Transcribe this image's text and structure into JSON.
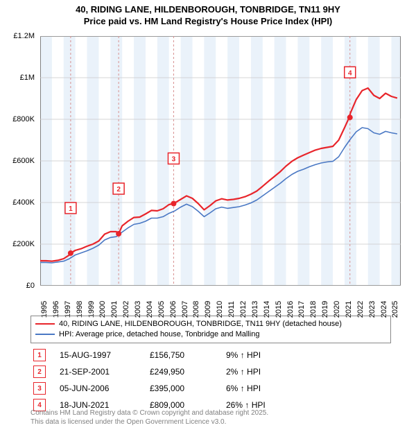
{
  "title": {
    "line1": "40, RIDING LANE, HILDENBOROUGH, TONBRIDGE, TN11 9HY",
    "line2": "Price paid vs. HM Land Registry's House Price Index (HPI)"
  },
  "chart": {
    "type": "line",
    "background_color": "#ffffff",
    "alt_band_color": "#eaf2fa",
    "grid_color": "#c8c8c8",
    "axis_color": "#808080",
    "xlim": [
      1995,
      2025.8
    ],
    "ylim": [
      0,
      1200000
    ],
    "ytick_step": 200000,
    "yticks": [
      {
        "v": 0,
        "label": "£0"
      },
      {
        "v": 200000,
        "label": "£200K"
      },
      {
        "v": 400000,
        "label": "£400K"
      },
      {
        "v": 600000,
        "label": "£600K"
      },
      {
        "v": 800000,
        "label": "£800K"
      },
      {
        "v": 1000000,
        "label": "£1M"
      },
      {
        "v": 1200000,
        "label": "£1.2M"
      }
    ],
    "xticks": [
      1995,
      1996,
      1997,
      1998,
      1999,
      2000,
      2001,
      2002,
      2003,
      2004,
      2005,
      2006,
      2007,
      2008,
      2009,
      2010,
      2011,
      2012,
      2013,
      2014,
      2015,
      2016,
      2017,
      2018,
      2019,
      2020,
      2021,
      2022,
      2023,
      2024,
      2025
    ],
    "series": [
      {
        "name": "price_paid",
        "label": "40, RIDING LANE, HILDENBOROUGH, TONBRIDGE, TN11 9HY (detached house)",
        "color": "#e8252b",
        "line_width": 2.2,
        "data": [
          [
            1995.0,
            120000
          ],
          [
            1995.5,
            120000
          ],
          [
            1996.0,
            118000
          ],
          [
            1996.5,
            122000
          ],
          [
            1997.0,
            130000
          ],
          [
            1997.5,
            148000
          ],
          [
            1997.6,
            156750
          ],
          [
            1998.0,
            170000
          ],
          [
            1998.5,
            178000
          ],
          [
            1999.0,
            190000
          ],
          [
            1999.5,
            200000
          ],
          [
            2000.0,
            215000
          ],
          [
            2000.5,
            248000
          ],
          [
            2001.0,
            260000
          ],
          [
            2001.5,
            260000
          ],
          [
            2001.7,
            249950
          ],
          [
            2002.0,
            288000
          ],
          [
            2002.5,
            310000
          ],
          [
            2003.0,
            328000
          ],
          [
            2003.5,
            330000
          ],
          [
            2004.0,
            345000
          ],
          [
            2004.5,
            362000
          ],
          [
            2005.0,
            360000
          ],
          [
            2005.5,
            370000
          ],
          [
            2006.0,
            390000
          ],
          [
            2006.4,
            395000
          ],
          [
            2007.0,
            415000
          ],
          [
            2007.5,
            432000
          ],
          [
            2008.0,
            420000
          ],
          [
            2008.5,
            395000
          ],
          [
            2009.0,
            365000
          ],
          [
            2009.5,
            385000
          ],
          [
            2010.0,
            408000
          ],
          [
            2010.5,
            418000
          ],
          [
            2011.0,
            412000
          ],
          [
            2011.5,
            415000
          ],
          [
            2012.0,
            420000
          ],
          [
            2012.5,
            428000
          ],
          [
            2013.0,
            440000
          ],
          [
            2013.5,
            455000
          ],
          [
            2014.0,
            478000
          ],
          [
            2014.5,
            502000
          ],
          [
            2015.0,
            525000
          ],
          [
            2015.5,
            548000
          ],
          [
            2016.0,
            575000
          ],
          [
            2016.5,
            598000
          ],
          [
            2017.0,
            615000
          ],
          [
            2017.5,
            628000
          ],
          [
            2018.0,
            640000
          ],
          [
            2018.5,
            652000
          ],
          [
            2019.0,
            660000
          ],
          [
            2019.5,
            665000
          ],
          [
            2020.0,
            670000
          ],
          [
            2020.5,
            700000
          ],
          [
            2021.0,
            760000
          ],
          [
            2021.4,
            809000
          ],
          [
            2021.5,
            830000
          ],
          [
            2022.0,
            895000
          ],
          [
            2022.5,
            938000
          ],
          [
            2023.0,
            950000
          ],
          [
            2023.5,
            915000
          ],
          [
            2024.0,
            900000
          ],
          [
            2024.5,
            925000
          ],
          [
            2025.0,
            910000
          ],
          [
            2025.5,
            902000
          ]
        ]
      },
      {
        "name": "hpi",
        "label": "HPI: Average price, detached house, Tonbridge and Malling",
        "color": "#4a78c4",
        "line_width": 1.6,
        "data": [
          [
            1995.0,
            112000
          ],
          [
            1995.5,
            112000
          ],
          [
            1996.0,
            110000
          ],
          [
            1996.5,
            114000
          ],
          [
            1997.0,
            118000
          ],
          [
            1997.5,
            130000
          ],
          [
            1998.0,
            148000
          ],
          [
            1998.5,
            158000
          ],
          [
            1999.0,
            168000
          ],
          [
            1999.5,
            180000
          ],
          [
            2000.0,
            195000
          ],
          [
            2000.5,
            220000
          ],
          [
            2001.0,
            232000
          ],
          [
            2001.5,
            236000
          ],
          [
            2002.0,
            258000
          ],
          [
            2002.5,
            278000
          ],
          [
            2003.0,
            295000
          ],
          [
            2003.5,
            300000
          ],
          [
            2004.0,
            310000
          ],
          [
            2004.5,
            325000
          ],
          [
            2005.0,
            325000
          ],
          [
            2005.5,
            332000
          ],
          [
            2006.0,
            348000
          ],
          [
            2006.5,
            360000
          ],
          [
            2007.0,
            378000
          ],
          [
            2007.5,
            392000
          ],
          [
            2008.0,
            380000
          ],
          [
            2008.5,
            358000
          ],
          [
            2009.0,
            332000
          ],
          [
            2009.5,
            350000
          ],
          [
            2010.0,
            370000
          ],
          [
            2010.5,
            378000
          ],
          [
            2011.0,
            372000
          ],
          [
            2011.5,
            376000
          ],
          [
            2012.0,
            380000
          ],
          [
            2012.5,
            388000
          ],
          [
            2013.0,
            398000
          ],
          [
            2013.5,
            412000
          ],
          [
            2014.0,
            432000
          ],
          [
            2014.5,
            452000
          ],
          [
            2015.0,
            472000
          ],
          [
            2015.5,
            492000
          ],
          [
            2016.0,
            515000
          ],
          [
            2016.5,
            535000
          ],
          [
            2017.0,
            550000
          ],
          [
            2017.5,
            560000
          ],
          [
            2018.0,
            572000
          ],
          [
            2018.5,
            582000
          ],
          [
            2019.0,
            590000
          ],
          [
            2019.5,
            595000
          ],
          [
            2020.0,
            598000
          ],
          [
            2020.5,
            620000
          ],
          [
            2021.0,
            665000
          ],
          [
            2021.5,
            705000
          ],
          [
            2022.0,
            740000
          ],
          [
            2022.5,
            760000
          ],
          [
            2023.0,
            755000
          ],
          [
            2023.5,
            735000
          ],
          [
            2024.0,
            728000
          ],
          [
            2024.5,
            742000
          ],
          [
            2025.0,
            735000
          ],
          [
            2025.5,
            730000
          ]
        ]
      }
    ],
    "sale_markers": [
      {
        "n": 1,
        "x": 1997.6,
        "y": 156750,
        "color": "#e8252b"
      },
      {
        "n": 2,
        "x": 2001.7,
        "y": 249950,
        "color": "#e8252b"
      },
      {
        "n": 3,
        "x": 2006.4,
        "y": 395000,
        "color": "#e8252b"
      },
      {
        "n": 4,
        "x": 2021.46,
        "y": 809000,
        "color": "#e8252b"
      }
    ],
    "marker_dashed_color": "#d89090",
    "marker_label_y_offset": -65
  },
  "sales_table": [
    {
      "n": 1,
      "date": "15-AUG-1997",
      "price": "£156,750",
      "pct": "9%",
      "dir": "↑",
      "suffix": "HPI",
      "color": "#e8252b"
    },
    {
      "n": 2,
      "date": "21-SEP-2001",
      "price": "£249,950",
      "pct": "2%",
      "dir": "↑",
      "suffix": "HPI",
      "color": "#e8252b"
    },
    {
      "n": 3,
      "date": "05-JUN-2006",
      "price": "£395,000",
      "pct": "6%",
      "dir": "↑",
      "suffix": "HPI",
      "color": "#e8252b"
    },
    {
      "n": 4,
      "date": "18-JUN-2021",
      "price": "£809,000",
      "pct": "26%",
      "dir": "↑",
      "suffix": "HPI",
      "color": "#e8252b"
    }
  ],
  "attribution": {
    "line1": "Contains HM Land Registry data © Crown copyright and database right 2025.",
    "line2": "This data is licensed under the Open Government Licence v3.0."
  }
}
